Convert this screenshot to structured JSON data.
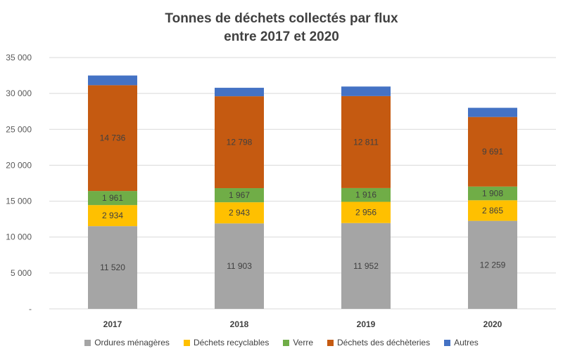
{
  "chart_data": {
    "type": "bar",
    "stacked": true,
    "title_lines": [
      "Tonnes de déchets collectés par flux",
      "entre 2017 et 2020"
    ],
    "categories": [
      "2017",
      "2018",
      "2019",
      "2020"
    ],
    "ylim": [
      0,
      35000
    ],
    "y_ticks": [
      0,
      5000,
      10000,
      15000,
      20000,
      25000,
      30000,
      35000
    ],
    "y_tick_labels": [
      "-",
      "5 000",
      "10 000",
      "15 000",
      "20 000",
      "25 000",
      "30 000",
      "35 000"
    ],
    "grid": true,
    "legend_position": "bottom",
    "series": [
      {
        "name": "Ordures ménagères",
        "color": "#a5a5a5",
        "values": [
          11520,
          11903,
          11952,
          12259
        ],
        "labels": [
          "11 520",
          "11 903",
          "11 952",
          "12 259"
        ]
      },
      {
        "name": "Déchets recyclables",
        "color": "#ffc000",
        "values": [
          2934,
          2943,
          2956,
          2865
        ],
        "labels": [
          "2 934",
          "2 943",
          "2 956",
          "2 865"
        ]
      },
      {
        "name": "Verre",
        "color": "#70ad47",
        "values": [
          1961,
          1967,
          1916,
          1908
        ],
        "labels": [
          "1 961",
          "1 967",
          "1 916",
          "1 908"
        ]
      },
      {
        "name": "Déchets des déchèteries",
        "color": "#c55a11",
        "values": [
          14736,
          12798,
          12811,
          9691
        ],
        "labels": [
          "14 736",
          "12 798",
          "12 811",
          "9 691"
        ]
      },
      {
        "name": "Autres",
        "color": "#4472c4",
        "values": [
          1350,
          1180,
          1330,
          1280
        ],
        "labels": null
      }
    ]
  }
}
